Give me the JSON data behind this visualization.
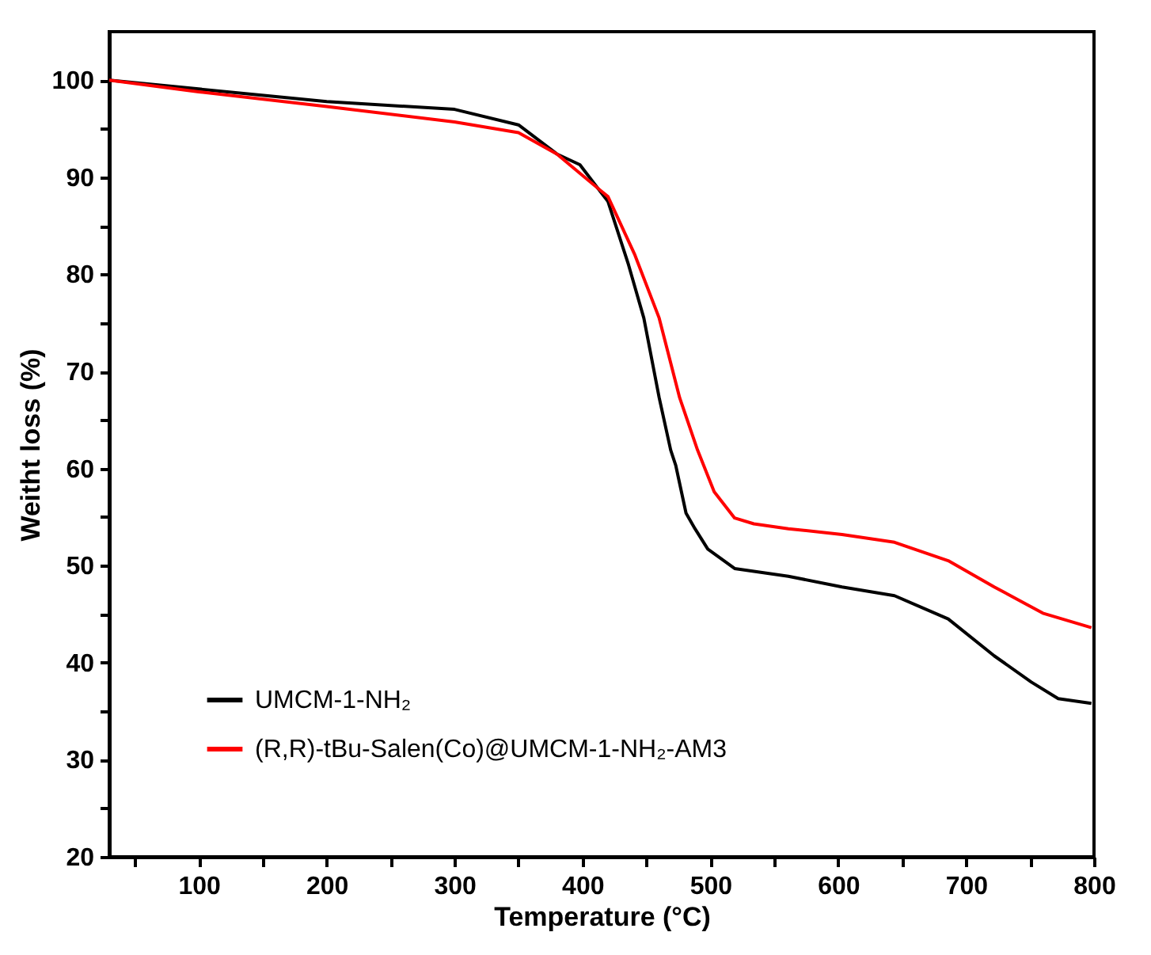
{
  "chart_data": {
    "type": "line",
    "xlabel": "Temperature (°C)",
    "ylabel": "Weitht loss (%)",
    "xlim": [
      30,
      800
    ],
    "ylim": [
      20,
      105
    ],
    "xticks": [
      {
        "value": 50,
        "label": null
      },
      100,
      {
        "value": 150,
        "label": null
      },
      200,
      {
        "value": 250,
        "label": null
      },
      300,
      {
        "value": 350,
        "label": null
      },
      400,
      {
        "value": 450,
        "label": null
      },
      500,
      {
        "value": 550,
        "label": null
      },
      600,
      {
        "value": 650,
        "label": null
      },
      700,
      {
        "value": 750,
        "label": null
      },
      800
    ],
    "yticks": [
      20,
      {
        "value": 25,
        "label": null
      },
      30,
      {
        "value": 35,
        "label": null
      },
      40,
      {
        "value": 45,
        "label": null
      },
      50,
      {
        "value": 55,
        "label": null
      },
      60,
      {
        "value": 65,
        "label": null
      },
      70,
      {
        "value": 75,
        "label": null
      },
      80,
      {
        "value": 85,
        "label": null
      },
      90,
      {
        "value": 95,
        "label": null
      },
      100
    ],
    "legend": "bottom left",
    "grid": false,
    "line_style": "solid",
    "marker": "none",
    "series": [
      {
        "name": "UMCM-1-NH₂",
        "color": "#000000",
        "x": [
          30,
          200,
          300,
          350,
          380,
          398,
          420,
          436,
          448,
          460,
          469,
          473,
          481,
          488,
          498,
          519,
          561,
          603,
          644,
          686,
          722,
          751,
          772,
          798
        ],
        "values": [
          100,
          97.8,
          97.0,
          95.4,
          92.4,
          91.3,
          87.5,
          81,
          75.5,
          67.3,
          61.9,
          60.3,
          55.4,
          53.8,
          51.7,
          49.7,
          48.9,
          47.8,
          46.9,
          44.5,
          40.7,
          38.0,
          36.3,
          35.8
        ]
      },
      {
        "name": "(R,R)-tBu-Salen(Co)@UMCM-1-NH₂-AM3",
        "color": "#ff0000",
        "x": [
          30,
          100,
          200,
          300,
          350,
          380,
          400,
          420,
          441,
          460,
          476,
          490,
          503,
          519,
          534,
          561,
          603,
          644,
          686,
          722,
          760,
          798
        ],
        "values": [
          100,
          98.8,
          97.3,
          95.7,
          94.6,
          92.4,
          90.2,
          88,
          82,
          75.5,
          67.3,
          61.9,
          57.6,
          54.9,
          54.3,
          53.8,
          53.2,
          52.4,
          50.5,
          47.8,
          45.1,
          43.6
        ]
      }
    ]
  }
}
